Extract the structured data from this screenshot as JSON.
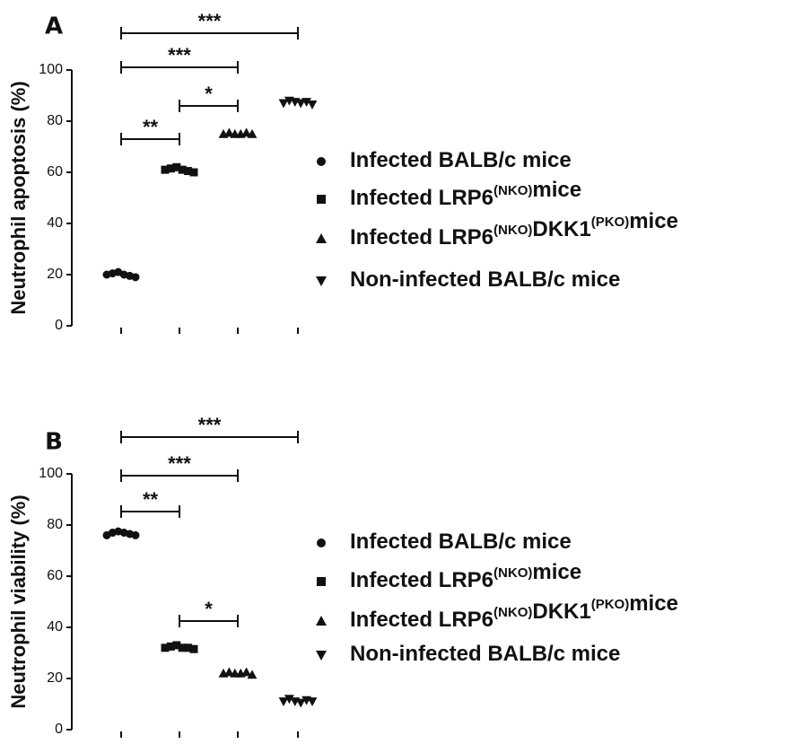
{
  "chart_data": [
    {
      "type": "dot",
      "panel": "A",
      "ylabel": "Neutrophil apoptosis (%)",
      "color": "#111111",
      "ylim": [
        0,
        100
      ],
      "yticks": [
        0,
        20,
        40,
        60,
        80,
        100
      ],
      "series": [
        {
          "name": "Infected BALB/c mice",
          "marker": "circle",
          "values": [
            20,
            20.5,
            21,
            20,
            19.5,
            19
          ]
        },
        {
          "name": "Infected LRP6(NKO)mice",
          "marker": "square",
          "values": [
            61,
            61.5,
            62,
            61,
            60.5,
            60
          ]
        },
        {
          "name": "Infected LRP6(NKO)DKK1(PKO)mice",
          "marker": "triangle-up",
          "values": [
            75,
            75.5,
            75,
            75,
            75.5,
            75
          ]
        },
        {
          "name": "Non-infected BALB/c mice",
          "marker": "triangle-down",
          "values": [
            87,
            88,
            87.5,
            87,
            87.5,
            86.5
          ]
        }
      ],
      "comparisons": [
        {
          "groups": [
            0,
            3
          ],
          "label": "***"
        },
        {
          "groups": [
            0,
            2
          ],
          "label": "***"
        },
        {
          "groups": [
            1,
            2
          ],
          "label": "*"
        },
        {
          "groups": [
            0,
            1
          ],
          "label": "**"
        }
      ]
    },
    {
      "type": "dot",
      "panel": "B",
      "ylabel": "Neutrophil viability (%)",
      "color": "#111111",
      "ylim": [
        0,
        100
      ],
      "yticks": [
        0,
        20,
        40,
        60,
        80,
        100
      ],
      "series": [
        {
          "name": "Infected BALB/c mice",
          "marker": "circle",
          "values": [
            76,
            77,
            77.5,
            77,
            76.5,
            76
          ]
        },
        {
          "name": "Infected LRP6(NKO)mice",
          "marker": "square",
          "values": [
            32,
            32.5,
            33,
            32,
            32,
            31.5
          ]
        },
        {
          "name": "Infected LRP6(NKO)DKK1(PKO)mice",
          "marker": "triangle-up",
          "values": [
            22,
            22.5,
            22,
            22,
            22.5,
            21.5
          ]
        },
        {
          "name": "Non-infected BALB/c mice",
          "marker": "triangle-down",
          "values": [
            11,
            12,
            11,
            10.5,
            11.5,
            11
          ]
        }
      ],
      "comparisons": [
        {
          "groups": [
            0,
            3
          ],
          "label": "***"
        },
        {
          "groups": [
            0,
            2
          ],
          "label": "***"
        },
        {
          "groups": [
            0,
            1
          ],
          "label": "**"
        },
        {
          "groups": [
            1,
            2
          ],
          "label": "*"
        }
      ]
    }
  ]
}
